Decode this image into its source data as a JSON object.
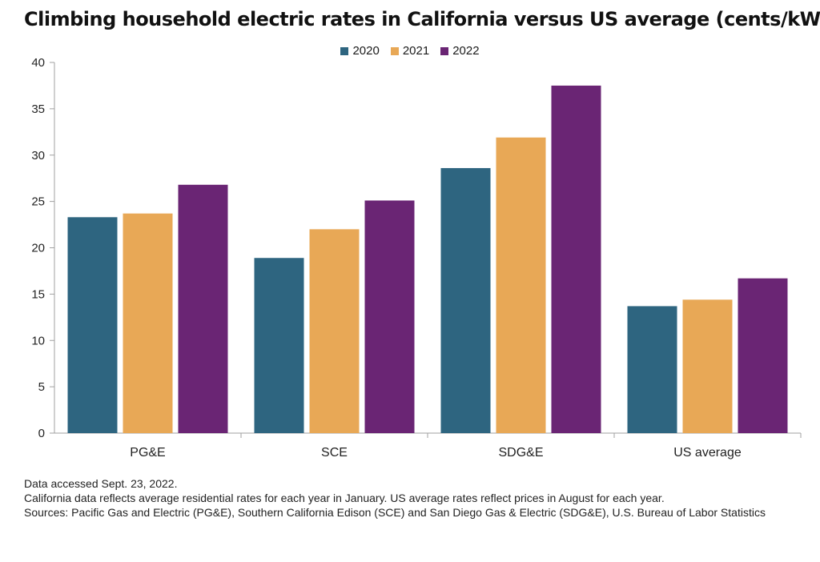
{
  "title": "Climbing household electric rates in California versus US average (cents/kWh)",
  "colors": {
    "2020": "#2e6580",
    "2021": "#e8a856",
    "2022": "#6a2574",
    "axis": "#a0a0a0",
    "text": "#222222"
  },
  "chart_data": {
    "type": "bar",
    "title": "Climbing household electric rates in California versus US average (cents/kWh)",
    "categories": [
      "PG&E",
      "SCE",
      "SDG&E",
      "US average"
    ],
    "series": [
      {
        "name": "2020",
        "values": [
          23.3,
          18.9,
          28.6,
          13.7
        ]
      },
      {
        "name": "2021",
        "values": [
          23.7,
          22.0,
          31.9,
          14.4
        ]
      },
      {
        "name": "2022",
        "values": [
          26.8,
          25.1,
          37.5,
          16.7
        ]
      }
    ],
    "ylim": [
      0,
      40
    ],
    "yticks": [
      "0",
      "5",
      "10",
      "15",
      "20",
      "25",
      "30",
      "35",
      "40"
    ],
    "grid": false,
    "legend_position": "top-center"
  },
  "notes": {
    "line1": "Data accessed Sept. 23, 2022.",
    "line2": "California data reflects average residential rates for each year in January. US average rates reflect prices in August for each year.",
    "line3": "Sources: Pacific Gas and Electric (PG&E), Southern California Edison (SCE) and San Diego Gas & Electric (SDG&E), U.S. Bureau of Labor Statistics"
  }
}
